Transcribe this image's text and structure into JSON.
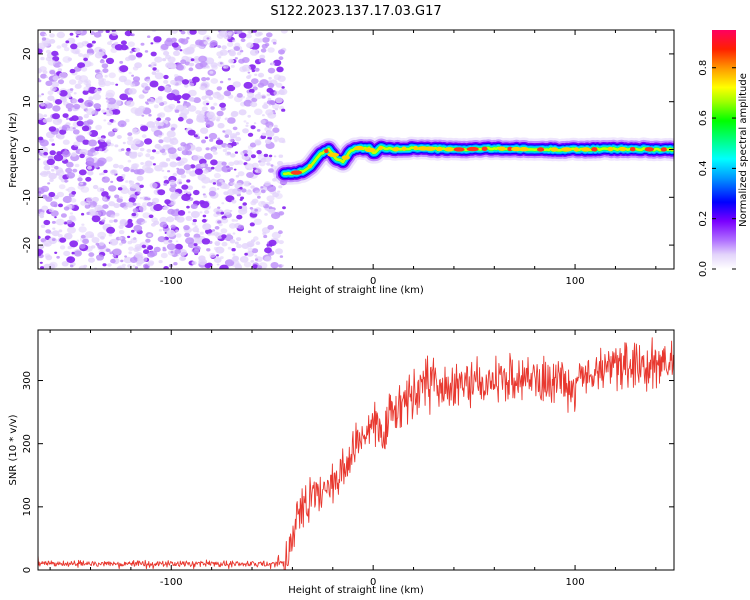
{
  "title": "S122.2023.137.17.03.G17",
  "colors": {
    "snr_line": "#e8382f",
    "speckle_light": "#e3d4fb",
    "speckle_dark": "#8a2bf0",
    "axis": "#000000"
  },
  "chart_data": [
    {
      "type": "heatmap",
      "xlabel": "Height of straight line (km)",
      "ylabel": "Frequency (Hz)",
      "xlim": [
        -166,
        149
      ],
      "ylim": [
        -25,
        25
      ],
      "x_ticks": [
        -100,
        0,
        100
      ],
      "y_ticks": [
        -20,
        -10,
        0,
        10,
        20
      ],
      "noise_region_x": [
        -166,
        -44
      ],
      "ridge": [
        [
          -44,
          -5
        ],
        [
          -40,
          -5
        ],
        [
          -34,
          -4.5
        ],
        [
          -30,
          -3
        ],
        [
          -26,
          -1
        ],
        [
          -22,
          0
        ],
        [
          -18,
          -2
        ],
        [
          -15,
          -2.5
        ],
        [
          -11,
          -0.2
        ],
        [
          -7,
          0.3
        ],
        [
          -2,
          0.2
        ],
        [
          0,
          -0.8
        ],
        [
          4,
          0.4
        ],
        [
          10,
          0
        ],
        [
          20,
          0.3
        ],
        [
          40,
          0
        ],
        [
          60,
          0.2
        ],
        [
          80,
          0
        ],
        [
          100,
          0
        ],
        [
          120,
          0.1
        ],
        [
          149,
          0
        ]
      ],
      "colorbar": {
        "label": "Normalized spectral amplitude",
        "range": [
          0,
          0.95
        ],
        "ticks": [
          0.0,
          0.2,
          0.4,
          0.6,
          0.8
        ],
        "colormap": "gist_rainbow_r"
      }
    },
    {
      "type": "line",
      "xlabel": "Height of straight line (km)",
      "ylabel": "SNR (10 * v/v)",
      "xlim": [
        -166,
        149
      ],
      "ylim": [
        0,
        380
      ],
      "x_ticks": [
        -100,
        0,
        100
      ],
      "y_ticks": [
        0,
        100,
        200,
        300
      ],
      "series": [
        {
          "values_trend": [
            [
              -166,
              10
            ],
            [
              -44,
              10
            ],
            [
              -42,
              20
            ],
            [
              -40,
              55
            ],
            [
              -37,
              95
            ],
            [
              -33,
              105
            ],
            [
              -28,
              115
            ],
            [
              -22,
              130
            ],
            [
              -16,
              150
            ],
            [
              -12,
              180
            ],
            [
              -8,
              200
            ],
            [
              -4,
              225
            ],
            [
              0,
              230
            ],
            [
              5,
              225
            ],
            [
              10,
              250
            ],
            [
              15,
              265
            ],
            [
              20,
              275
            ],
            [
              25,
              290
            ],
            [
              30,
              300
            ],
            [
              40,
              290
            ],
            [
              50,
              295
            ],
            [
              60,
              305
            ],
            [
              70,
              310
            ],
            [
              80,
              300
            ],
            [
              90,
              300
            ],
            [
              100,
              285
            ],
            [
              110,
              320
            ],
            [
              120,
              325
            ],
            [
              130,
              320
            ],
            [
              140,
              330
            ],
            [
              149,
              330
            ]
          ]
        }
      ]
    }
  ]
}
